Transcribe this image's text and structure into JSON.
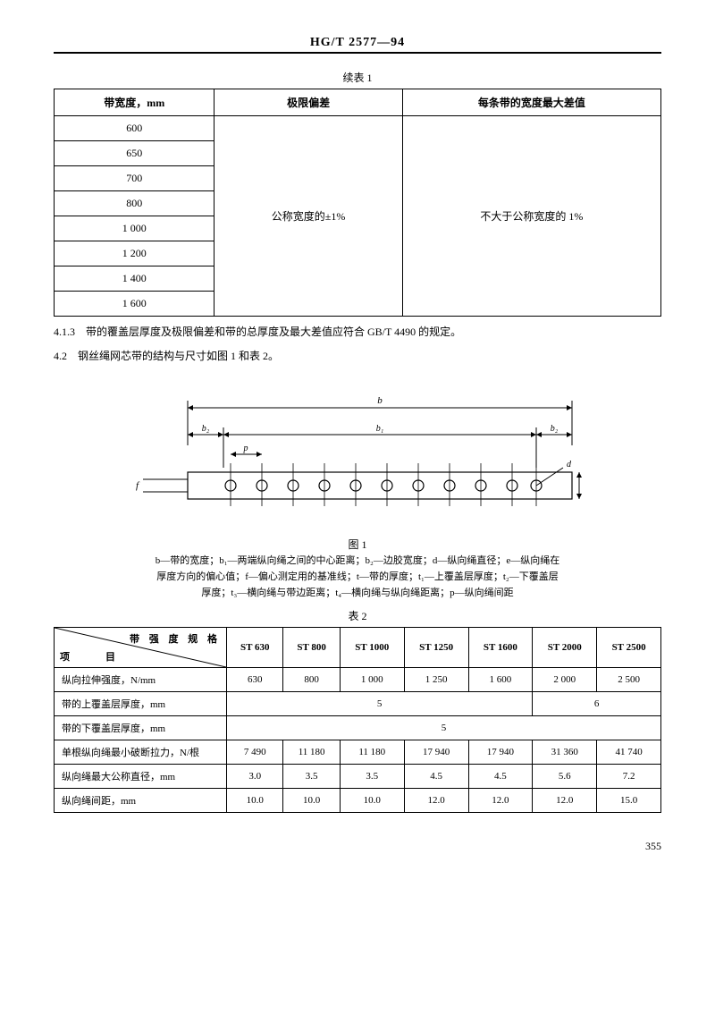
{
  "header": {
    "standard": "HG/T 2577—94"
  },
  "table1": {
    "caption": "续表 1",
    "headers": [
      "带宽度，mm",
      "极限偏差",
      "每条带的宽度最大差值"
    ],
    "widths": [
      "600",
      "650",
      "700",
      "800",
      "1 000",
      "1 200",
      "1 400",
      "1 600"
    ],
    "tolerance": "公称宽度的±1%",
    "max_diff": "不大于公称宽度的 1%"
  },
  "paragraphs": {
    "p413": "4.1.3　带的覆盖层厚度及极限偏差和带的总厚度及最大差值应符合 GB/T 4490 的规定。",
    "p42": "4.2　钢丝绳网芯带的结构与尺寸如图 1 和表 2。"
  },
  "figure1": {
    "caption": "图 1",
    "desc_line1": "b—带的宽度；b₁—两端纵向绳之间的中心距离；b₂—边胶宽度；d—纵向绳直径；e—纵向绳在",
    "desc_line2": "厚度方向的偏心值；f—偏心测定用的基准线；t—带的厚度；t₁—上覆盖层厚度；t₂—下覆盖层",
    "desc_line3": "厚度；t₃—横向绳与带边距离；t₄—横向绳与纵向绳距离；p—纵向绳间距",
    "colors": {
      "stroke": "#000000",
      "background": "#ffffff"
    },
    "label_fontsize": 11
  },
  "table2": {
    "caption": "表 2",
    "diag_top": "带 强 度 规 格",
    "diag_bot": "项　　目",
    "columns": [
      "ST 630",
      "ST 800",
      "ST 1000",
      "ST 1250",
      "ST 1600",
      "ST 2000",
      "ST 2500"
    ],
    "rows": [
      {
        "label": "纵向拉伸强度，N/mm",
        "cells": [
          "630",
          "800",
          "1 000",
          "1 250",
          "1 600",
          "2 000",
          "2 500"
        ]
      },
      {
        "label": "带的上覆盖层厚度，mm",
        "merged": [
          {
            "span": 5,
            "val": "5"
          },
          {
            "span": 2,
            "val": "6"
          }
        ]
      },
      {
        "label": "带的下覆盖层厚度，mm",
        "merged": [
          {
            "span": 7,
            "val": "5"
          }
        ]
      },
      {
        "label": "单根纵向绳最小破断拉力，N/根",
        "cells": [
          "7 490",
          "11 180",
          "11 180",
          "17 940",
          "17 940",
          "31 360",
          "41 740"
        ]
      },
      {
        "label": "纵向绳最大公称直径，mm",
        "cells": [
          "3.0",
          "3.5",
          "3.5",
          "4.5",
          "4.5",
          "5.6",
          "7.2"
        ]
      },
      {
        "label": "纵向绳间距，mm",
        "cells": [
          "10.0",
          "10.0",
          "10.0",
          "12.0",
          "12.0",
          "12.0",
          "15.0"
        ]
      }
    ]
  },
  "page_number": "355"
}
